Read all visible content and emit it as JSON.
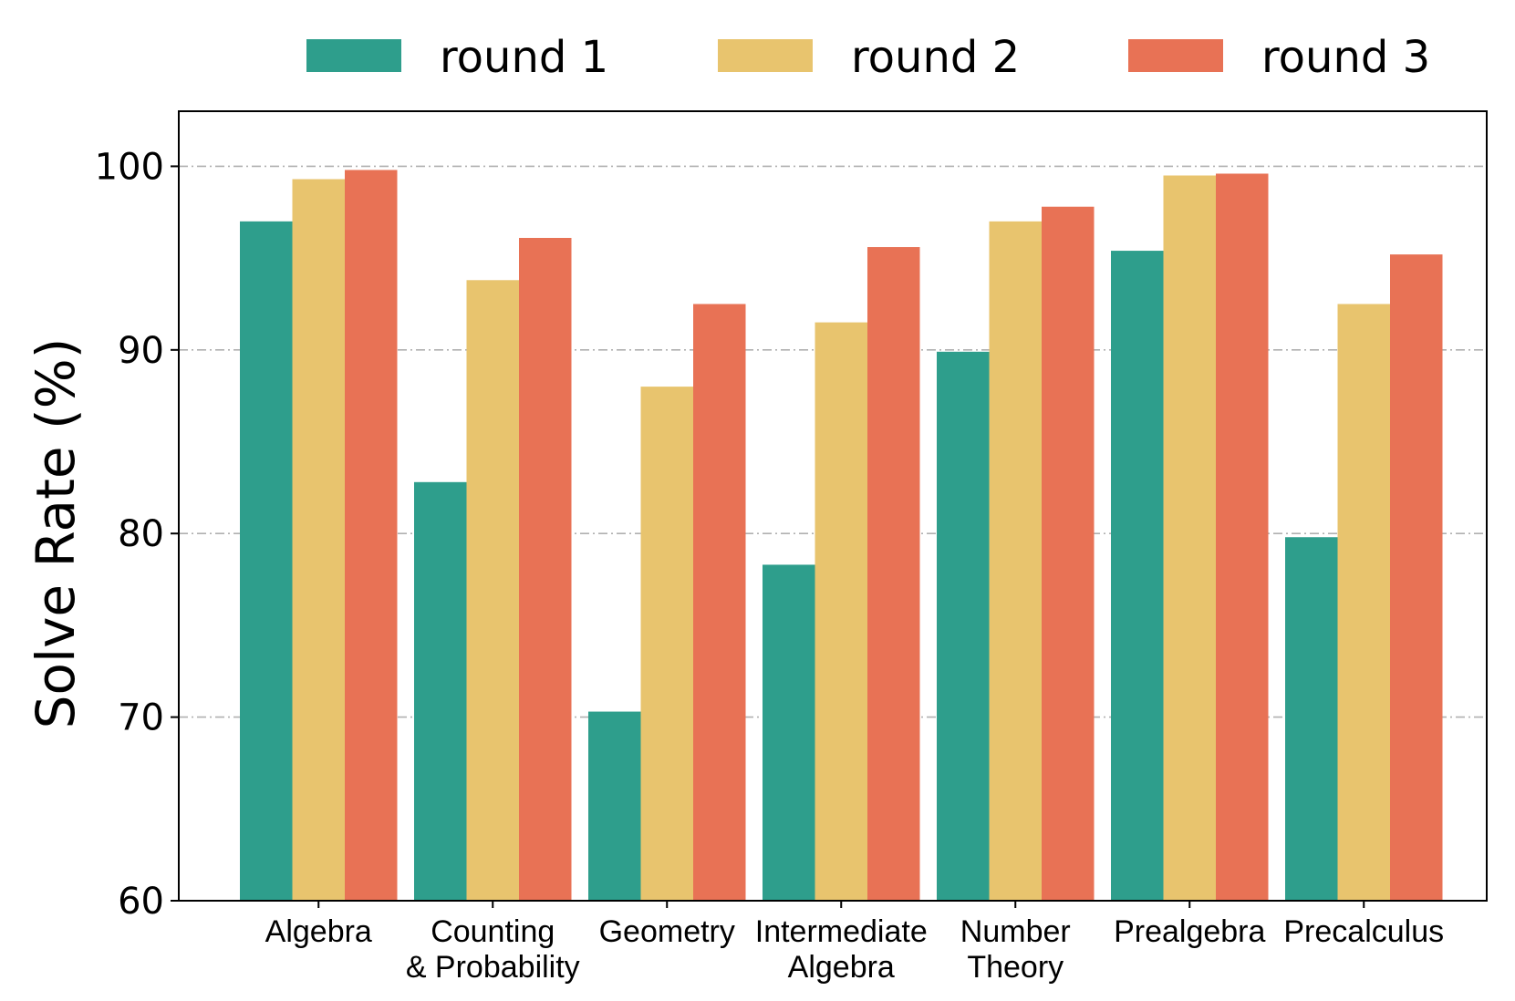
{
  "chart_data": {
    "type": "bar",
    "title": "",
    "xlabel": "",
    "ylabel": "Solve Rate (%)",
    "ylim": [
      60,
      103
    ],
    "yticks": [
      "60",
      "70",
      "80",
      "90",
      "100"
    ],
    "grid": "horizontal dash-dot lines",
    "legend_position": "top",
    "categories": [
      [
        "Algebra"
      ],
      [
        "Counting",
        "& Probability"
      ],
      [
        "Geometry"
      ],
      [
        "Intermediate",
        "Algebra"
      ],
      [
        "Number",
        "Theory"
      ],
      [
        "Prealgebra"
      ],
      [
        "Precalculus"
      ]
    ],
    "series": [
      {
        "name": "round 1",
        "color": "#2e9e8c",
        "values": [
          97.0,
          82.8,
          70.3,
          78.3,
          89.9,
          95.4,
          79.8
        ]
      },
      {
        "name": "round 2",
        "color": "#e8c46e",
        "values": [
          99.3,
          93.8,
          88.0,
          91.5,
          97.0,
          99.5,
          92.5
        ]
      },
      {
        "name": "round 3",
        "color": "#e87255",
        "values": [
          99.8,
          96.1,
          92.5,
          95.6,
          97.8,
          99.6,
          95.2
        ]
      }
    ]
  }
}
